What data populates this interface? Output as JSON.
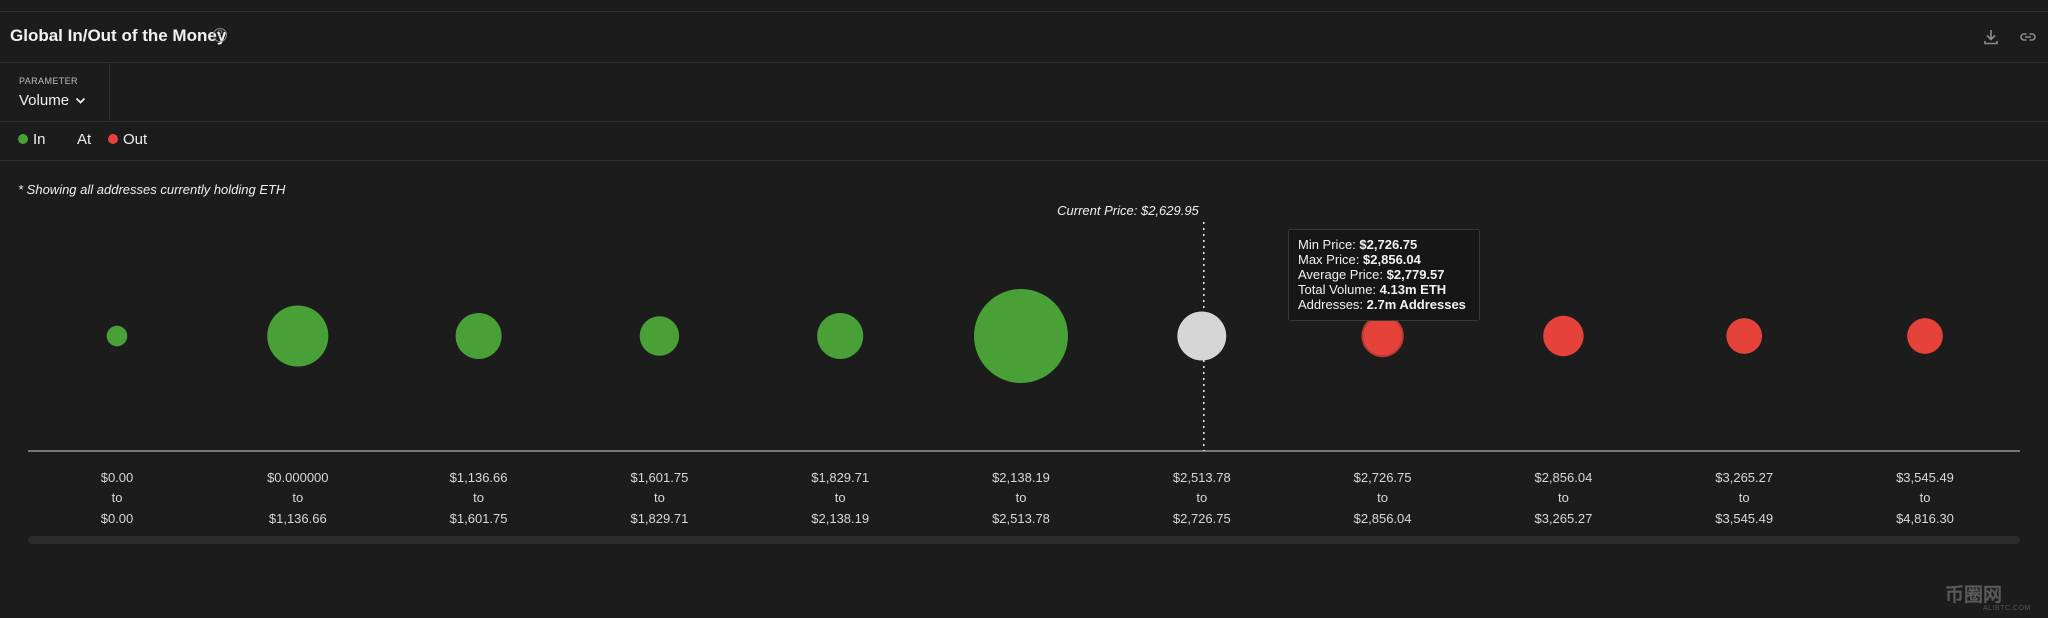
{
  "header": {
    "title": "Global In/Out of the Money",
    "help_glyph": "?"
  },
  "parameter": {
    "label": "PARAMETER",
    "value": "Volume"
  },
  "legend": {
    "in_label": "In",
    "at_label": "At",
    "out_label": "Out"
  },
  "note": "* Showing all addresses currently holding ETH",
  "colors": {
    "in": "#48a037",
    "at": "#d6d6d6",
    "out": "#e5433a",
    "background": "#1c1c1c"
  },
  "tooltip": {
    "min_label": "Min Price:",
    "min_value": "$2,726.75",
    "max_label": "Max Price:",
    "max_value": "$2,856.04",
    "avg_label": "Average Price:",
    "avg_value": "$2,779.57",
    "vol_label": "Total Volume:",
    "vol_value": "4.13m ETH",
    "addr_label": "Addresses:",
    "addr_value": "2.7m Addresses"
  },
  "watermark": {
    "main": "币圈网",
    "sub": "ALIBTC.COM"
  },
  "chart_data": {
    "type": "scatter",
    "title": "Global In/Out of the Money",
    "parameter": "Volume",
    "current_price_label": "Current Price: $2,629.95",
    "current_price": 2629.95,
    "categories": [
      {
        "from": "$0.00",
        "to": "$0.00",
        "status": "in",
        "relative_size": 0.22
      },
      {
        "from": "$0.000000",
        "to": "$1,136.66",
        "status": "in",
        "relative_size": 0.65
      },
      {
        "from": "$1,136.66",
        "to": "$1,601.75",
        "status": "in",
        "relative_size": 0.49
      },
      {
        "from": "$1,601.75",
        "to": "$1,829.71",
        "status": "in",
        "relative_size": 0.42
      },
      {
        "from": "$1,829.71",
        "to": "$2,138.19",
        "status": "in",
        "relative_size": 0.49
      },
      {
        "from": "$2,138.19",
        "to": "$2,513.78",
        "status": "in",
        "relative_size": 1.0
      },
      {
        "from": "$2,513.78",
        "to": "$2,726.75",
        "status": "at",
        "relative_size": 0.52
      },
      {
        "from": "$2,726.75",
        "to": "$2,856.04",
        "status": "out",
        "relative_size": 0.43
      },
      {
        "from": "$2,856.04",
        "to": "$3,265.27",
        "status": "out",
        "relative_size": 0.43
      },
      {
        "from": "$3,265.27",
        "to": "$3,545.49",
        "status": "out",
        "relative_size": 0.38
      },
      {
        "from": "$3,545.49",
        "to": "$4,816.30",
        "status": "out",
        "relative_size": 0.38
      }
    ],
    "connector_word": "to",
    "highlighted_index": 7
  }
}
